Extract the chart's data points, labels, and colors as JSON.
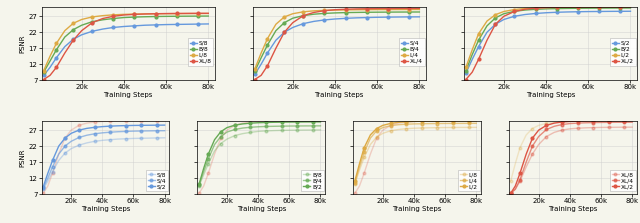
{
  "steps": [
    2000,
    5000,
    8000,
    12000,
    16000,
    20000,
    25000,
    30000,
    35000,
    40000,
    45000,
    50000,
    55000,
    60000,
    65000,
    70000,
    75000,
    80000
  ],
  "colors": {
    "S": "#6699dd",
    "B": "#66aa55",
    "L": "#ddaa44",
    "XL": "#dd5544"
  },
  "marker": "o",
  "markersize": 2.0,
  "linewidth": 1.0,
  "top_panels": [
    {
      "legends": [
        "S/8",
        "B/8",
        "L/8",
        "XL/8"
      ],
      "keys": [
        "S",
        "B",
        "L",
        "XL"
      ],
      "curves": {
        "S": [
          8.5,
          11.0,
          14.0,
          17.5,
          19.8,
          21.2,
          22.3,
          23.0,
          23.5,
          23.8,
          24.0,
          24.2,
          24.3,
          24.4,
          24.45,
          24.5,
          24.55,
          24.6
        ],
        "B": [
          9.5,
          13.0,
          16.5,
          20.5,
          22.8,
          24.2,
          25.3,
          25.9,
          26.3,
          26.6,
          26.75,
          26.85,
          26.92,
          26.97,
          27.0,
          27.03,
          27.05,
          27.07
        ],
        "L": [
          10.0,
          14.5,
          18.5,
          22.5,
          24.8,
          26.0,
          26.8,
          27.2,
          27.45,
          27.6,
          27.68,
          27.74,
          27.78,
          27.81,
          27.83,
          27.85,
          27.86,
          27.87
        ],
        "XL": [
          7.2,
          8.5,
          11.0,
          15.5,
          19.5,
          22.5,
          25.0,
          26.3,
          27.0,
          27.4,
          27.6,
          27.72,
          27.8,
          27.85,
          27.88,
          27.9,
          27.92,
          27.93
        ]
      }
    },
    {
      "legends": [
        "S/4",
        "B/4",
        "L/4",
        "XL/4"
      ],
      "keys": [
        "S",
        "B",
        "L",
        "XL"
      ],
      "curves": {
        "S": [
          8.8,
          12.0,
          15.5,
          19.5,
          22.0,
          23.5,
          24.7,
          25.4,
          25.85,
          26.15,
          26.35,
          26.5,
          26.6,
          26.68,
          26.73,
          26.77,
          26.8,
          26.82
        ],
        "B": [
          9.8,
          14.0,
          18.0,
          22.5,
          25.0,
          26.4,
          27.2,
          27.65,
          27.9,
          28.05,
          28.15,
          28.2,
          28.25,
          28.28,
          28.3,
          28.32,
          28.33,
          28.34
        ],
        "L": [
          10.5,
          15.5,
          20.0,
          24.5,
          26.8,
          27.8,
          28.4,
          28.7,
          28.85,
          28.95,
          29.0,
          29.04,
          29.07,
          29.09,
          29.1,
          29.11,
          29.12,
          29.13
        ],
        "XL": [
          7.2,
          8.5,
          11.5,
          17.0,
          22.0,
          25.0,
          27.2,
          28.2,
          28.75,
          29.05,
          29.2,
          29.3,
          29.36,
          29.4,
          29.43,
          29.45,
          29.46,
          29.47
        ]
      }
    },
    {
      "legends": [
        "S/2",
        "B/2",
        "L/2",
        "XL/2"
      ],
      "keys": [
        "S",
        "B",
        "L",
        "XL"
      ],
      "curves": {
        "S": [
          9.2,
          13.5,
          17.5,
          22.0,
          24.5,
          26.0,
          27.0,
          27.55,
          27.88,
          28.1,
          28.25,
          28.35,
          28.42,
          28.47,
          28.5,
          28.53,
          28.55,
          28.57
        ],
        "B": [
          10.0,
          15.0,
          19.5,
          24.0,
          26.5,
          27.8,
          28.55,
          28.95,
          29.18,
          29.32,
          29.4,
          29.46,
          29.5,
          29.53,
          29.55,
          29.57,
          29.58,
          29.59
        ],
        "L": [
          11.0,
          16.5,
          21.5,
          25.5,
          27.5,
          28.5,
          29.1,
          29.45,
          29.62,
          29.73,
          29.8,
          29.84,
          29.87,
          29.89,
          29.9,
          29.91,
          29.92,
          29.93
        ],
        "XL": [
          7.2,
          9.5,
          13.5,
          19.5,
          24.5,
          27.0,
          28.5,
          29.2,
          29.55,
          29.72,
          29.82,
          29.88,
          29.92,
          29.94,
          29.96,
          29.97,
          29.98,
          29.99
        ]
      }
    }
  ],
  "bottom_panels": [
    {
      "legends": [
        "S/8",
        "S/4",
        "S/2"
      ],
      "model": "S",
      "curves": {
        "S8": [
          8.5,
          11.0,
          14.0,
          17.5,
          19.8,
          21.2,
          22.3,
          23.0,
          23.5,
          23.8,
          24.0,
          24.2,
          24.3,
          24.4,
          24.45,
          24.5,
          24.55,
          24.6
        ],
        "S4": [
          8.8,
          12.0,
          15.5,
          19.5,
          22.0,
          23.5,
          24.7,
          25.4,
          25.85,
          26.15,
          26.35,
          26.5,
          26.6,
          26.68,
          26.73,
          26.77,
          26.8,
          26.82
        ],
        "S2": [
          9.2,
          13.5,
          17.5,
          22.0,
          24.5,
          26.0,
          27.0,
          27.55,
          27.88,
          28.1,
          28.25,
          28.35,
          28.42,
          28.47,
          28.5,
          28.53,
          28.55,
          28.57
        ]
      },
      "ref_curve": [
        7.2,
        9.5,
        13.5,
        19.5,
        24.5,
        27.0,
        28.5,
        29.2,
        29.55,
        29.72,
        29.82,
        29.88,
        29.92,
        29.94,
        29.96,
        29.97,
        29.98,
        29.99
      ],
      "ref_color": "#dd5544"
    },
    {
      "legends": [
        "B/8",
        "B/4",
        "B/2"
      ],
      "model": "B",
      "curves": {
        "B8": [
          9.5,
          13.0,
          16.5,
          20.5,
          22.8,
          24.2,
          25.3,
          25.9,
          26.3,
          26.6,
          26.75,
          26.85,
          26.92,
          26.97,
          27.0,
          27.03,
          27.05,
          27.07
        ],
        "B4": [
          9.8,
          14.0,
          18.0,
          22.5,
          25.0,
          26.4,
          27.2,
          27.65,
          27.9,
          28.05,
          28.15,
          28.2,
          28.25,
          28.28,
          28.3,
          28.32,
          28.33,
          28.34
        ],
        "B2": [
          10.0,
          15.0,
          19.5,
          24.0,
          26.5,
          27.8,
          28.55,
          28.95,
          29.18,
          29.32,
          29.4,
          29.46,
          29.5,
          29.53,
          29.55,
          29.57,
          29.58,
          29.59
        ]
      },
      "ref_curve": [
        7.2,
        9.5,
        13.5,
        19.5,
        24.5,
        27.0,
        28.5,
        29.2,
        29.55,
        29.72,
        29.82,
        29.88,
        29.92,
        29.94,
        29.96,
        29.97,
        29.98,
        29.99
      ],
      "ref_color": "#dd5544"
    },
    {
      "legends": [
        "L/8",
        "L/4",
        "L/2"
      ],
      "model": "L",
      "curves": {
        "L8": [
          10.0,
          14.5,
          18.5,
          22.5,
          24.8,
          26.0,
          26.8,
          27.2,
          27.45,
          27.6,
          27.68,
          27.74,
          27.78,
          27.81,
          27.83,
          27.85,
          27.86,
          27.87
        ],
        "L4": [
          10.5,
          15.5,
          20.0,
          24.5,
          26.8,
          27.8,
          28.4,
          28.7,
          28.85,
          28.95,
          29.0,
          29.04,
          29.07,
          29.09,
          29.1,
          29.11,
          29.12,
          29.13
        ],
        "L2": [
          11.0,
          16.5,
          21.5,
          25.5,
          27.5,
          28.5,
          29.1,
          29.45,
          29.62,
          29.73,
          29.8,
          29.84,
          29.87,
          29.89,
          29.9,
          29.91,
          29.92,
          29.93
        ]
      },
      "ref_curve": [
        7.2,
        9.5,
        13.5,
        19.5,
        24.5,
        27.0,
        28.5,
        29.2,
        29.55,
        29.72,
        29.82,
        29.88,
        29.92,
        29.94,
        29.96,
        29.97,
        29.98,
        29.99
      ],
      "ref_color": "#dd5544"
    },
    {
      "legends": [
        "XL/8",
        "XL/4",
        "XL/2"
      ],
      "model": "XL",
      "curves": {
        "XL8": [
          7.2,
          8.5,
          11.0,
          15.5,
          19.5,
          22.5,
          25.0,
          26.3,
          27.0,
          27.4,
          27.6,
          27.72,
          27.8,
          27.85,
          27.88,
          27.9,
          27.92,
          27.93
        ],
        "XL4": [
          7.2,
          8.5,
          11.5,
          17.0,
          22.0,
          25.0,
          27.2,
          28.2,
          28.75,
          29.05,
          29.2,
          29.3,
          29.36,
          29.4,
          29.43,
          29.45,
          29.46,
          29.47
        ],
        "XL2": [
          7.2,
          9.5,
          13.5,
          19.5,
          24.5,
          27.0,
          28.5,
          29.2,
          29.55,
          29.72,
          29.82,
          29.88,
          29.92,
          29.94,
          29.96,
          29.97,
          29.98,
          29.99
        ]
      },
      "ref_curve": [
        11.0,
        16.5,
        21.5,
        25.5,
        27.5,
        28.5,
        29.1,
        29.45,
        29.62,
        29.73,
        29.8,
        29.84,
        29.87,
        29.89,
        29.9,
        29.91,
        29.92,
        29.93
      ],
      "ref_color": "#ddaa44"
    }
  ],
  "ylim": [
    7,
    30
  ],
  "yticks": [
    7,
    12,
    17,
    22,
    27
  ],
  "xticks": [
    20000,
    40000,
    60000,
    80000
  ],
  "xticklabels": [
    "20k",
    "40k",
    "60k",
    "80k"
  ],
  "xlabel": "Training Steps",
  "ylabel": "PSNR",
  "bg_color": "#f5f5ec",
  "grid_color": "#cccccc",
  "grid_alpha": 0.6
}
